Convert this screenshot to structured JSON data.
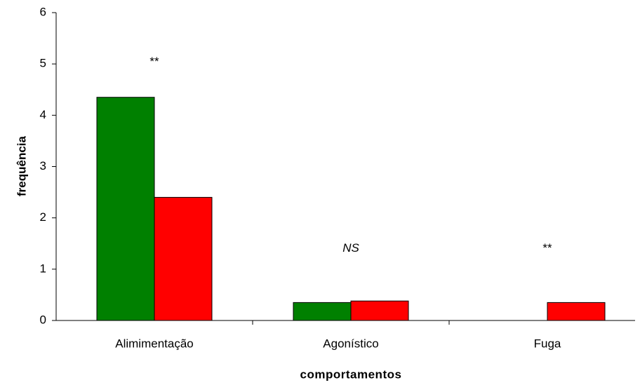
{
  "chart_data": {
    "type": "bar",
    "categories": [
      "Alimimentação",
      "Agonístico",
      "Fuga"
    ],
    "series": [
      {
        "color": "#008000",
        "values": [
          4.35,
          0.35,
          0
        ]
      },
      {
        "color": "#ff0000",
        "values": [
          2.4,
          0.38,
          0.35
        ]
      }
    ],
    "annotations": [
      {
        "text": "**"
      },
      {
        "text": "NS",
        "style": "italic"
      },
      {
        "text": "**"
      }
    ],
    "xlabel": "comportamentos",
    "ylabel": "frequência",
    "ylim": [
      0,
      6
    ],
    "yticks": [
      0,
      1,
      2,
      3,
      4,
      5,
      6
    ]
  }
}
